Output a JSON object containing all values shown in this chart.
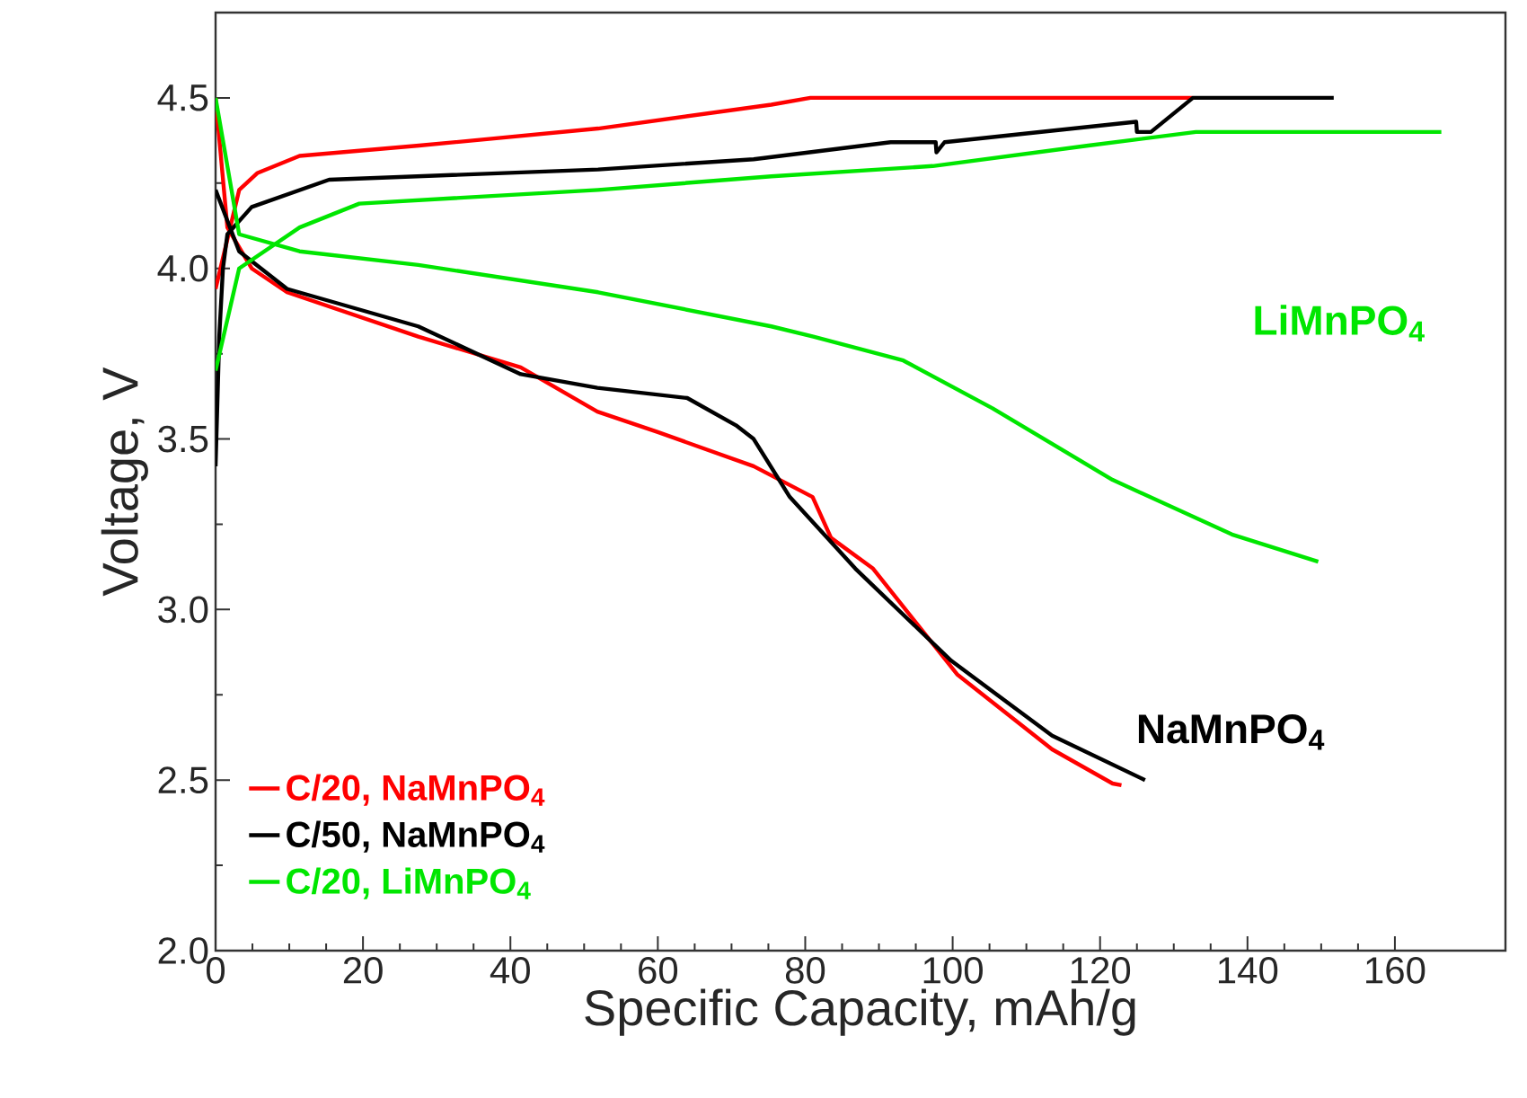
{
  "chart_data": {
    "type": "line",
    "xlabel": "Specific Capacity, mAh/g",
    "ylabel": "Voltage, V",
    "xlim": [
      0,
      175
    ],
    "ylim": [
      2.0,
      4.75
    ],
    "xticks": [
      0,
      20,
      40,
      60,
      80,
      100,
      120,
      140,
      160
    ],
    "yticks": [
      {
        "value": 2.0,
        "label": "2.0"
      },
      {
        "value": 2.5,
        "label": "2.5"
      },
      {
        "value": 3.0,
        "label": "3.0"
      },
      {
        "value": 3.5,
        "label": "3.5"
      },
      {
        "value": 4.0,
        "label": "4.0"
      },
      {
        "value": 4.5,
        "label": "4.5"
      }
    ],
    "legend": "bottom left",
    "grid": false,
    "marker": "none",
    "line_style": "solid",
    "series": [
      {
        "name": "C/20, NaMnPO$_{4}$",
        "color": "#ff0000",
        "x": [
          0,
          3.2,
          5.7,
          11.4,
          27.6,
          51.9,
          75.4,
          80.7,
          132.6,
          null,
          0,
          1.6,
          4.9,
          9.7,
          27.5,
          41.4,
          51.8,
          60,
          73,
          81,
          83.5,
          89.2,
          100.6,
          113.5,
          121.7,
          122.9
        ],
        "values": [
          3.94,
          4.23,
          4.28,
          4.33,
          4.36,
          4.41,
          4.48,
          4.5,
          4.5,
          null,
          4.5,
          4.12,
          4.0,
          3.93,
          3.8,
          3.71,
          3.58,
          3.52,
          3.42,
          3.33,
          3.21,
          3.12,
          2.81,
          2.59,
          2.49,
          2.485
        ]
      },
      {
        "name": "C/50, NaMnPO$_{4}$",
        "color": "#000000",
        "x": [
          0,
          0.5,
          1,
          1.6,
          4.9,
          15.4,
          51.9,
          73,
          91.6,
          97.7,
          97.8,
          98.9,
          124.9,
          125,
          126.9,
          132.6,
          151.7,
          null,
          0,
          3.2,
          9.7,
          27.5,
          41.4,
          51.8,
          64,
          70.6,
          73,
          77.9,
          86.8,
          99.8,
          113.5,
          126.1
        ],
        "values": [
          3.42,
          3.8,
          4.0,
          4.1,
          4.18,
          4.26,
          4.29,
          4.32,
          4.37,
          4.37,
          4.34,
          4.37,
          4.43,
          4.4,
          4.4,
          4.5,
          4.5,
          null,
          4.23,
          4.05,
          3.94,
          3.83,
          3.69,
          3.65,
          3.62,
          3.54,
          3.5,
          3.33,
          3.12,
          2.85,
          2.63,
          2.5
        ]
      },
      {
        "name": "C/20, LiMnPO$_{4}$",
        "color": "#00e600",
        "x": [
          0,
          3.2,
          11.4,
          19.5,
          51.9,
          75.4,
          97.3,
          118.4,
          133,
          166.3,
          null,
          0,
          3.2,
          11.4,
          27.5,
          51.9,
          75.4,
          81.1,
          93.3,
          105.4,
          121.7,
          137.9,
          149.6
        ],
        "values": [
          3.7,
          4.0,
          4.12,
          4.19,
          4.23,
          4.27,
          4.3,
          4.36,
          4.4,
          4.4,
          null,
          4.5,
          4.1,
          4.05,
          4.01,
          3.93,
          3.83,
          3.8,
          3.73,
          3.59,
          3.38,
          3.22,
          3.14
        ]
      }
    ],
    "annotations": [
      "LiMnPO$_{4}$",
      "NaMnPO$_{4}$"
    ]
  }
}
